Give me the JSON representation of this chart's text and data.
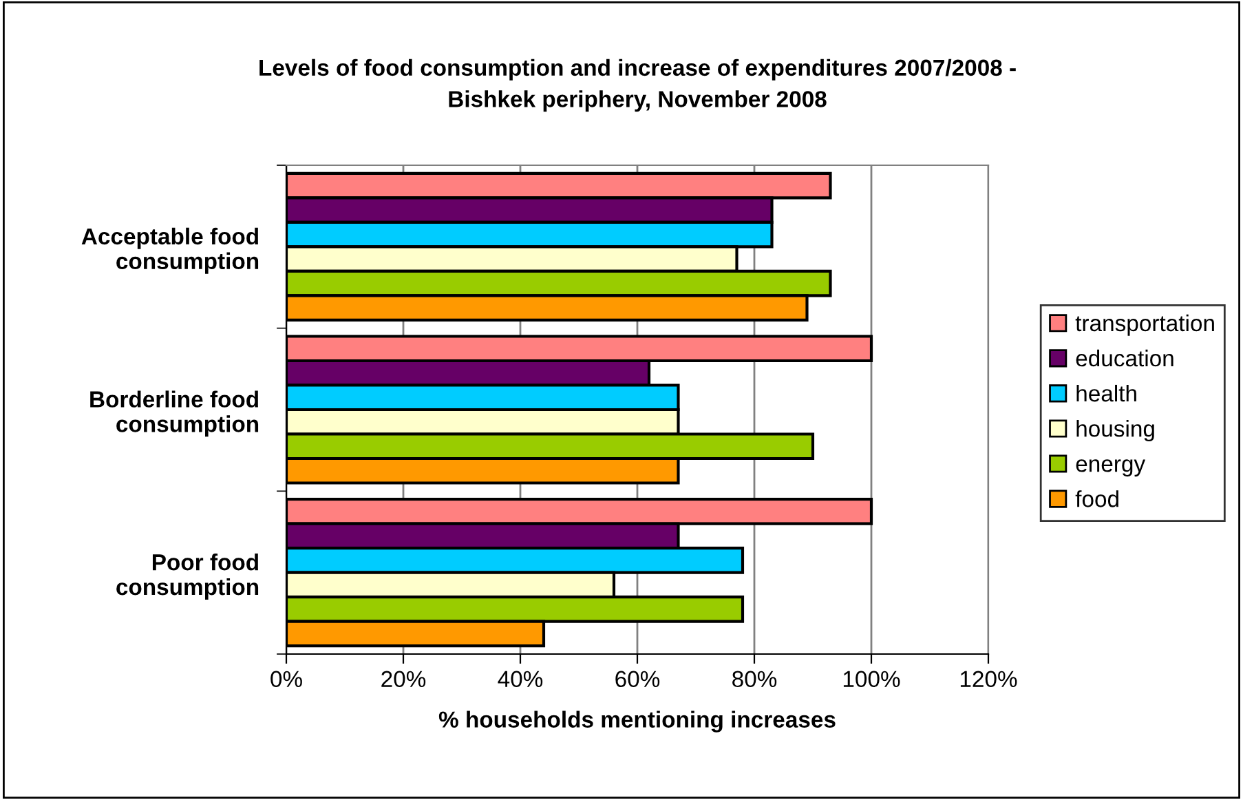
{
  "chart_data": {
    "type": "bar",
    "orientation": "horizontal",
    "title": "Levels of food consumption and increase of expenditures 2007/2008 -\nBishkek periphery, November 2008",
    "xlabel": "% households mentioning increases",
    "categories": [
      "Acceptable food\nconsumption",
      "Borderline food\nconsumption",
      "Poor food\nconsumption"
    ],
    "series": [
      {
        "name": "transportation",
        "color": "#ff8080",
        "values": [
          93,
          100,
          100
        ]
      },
      {
        "name": "education",
        "color": "#660066",
        "values": [
          83,
          62,
          67
        ]
      },
      {
        "name": "health",
        "color": "#00ccff",
        "values": [
          83,
          67,
          78
        ]
      },
      {
        "name": "housing",
        "color": "#ffffcc",
        "values": [
          77,
          67,
          56
        ]
      },
      {
        "name": "energy",
        "color": "#99cc00",
        "values": [
          93,
          90,
          78
        ]
      },
      {
        "name": "food",
        "color": "#ff9900",
        "values": [
          89,
          67,
          44
        ]
      }
    ],
    "xlim": [
      0,
      120
    ],
    "xticks": [
      {
        "value": 0,
        "label": "0%"
      },
      {
        "value": 20,
        "label": "20%"
      },
      {
        "value": 40,
        "label": "40%"
      },
      {
        "value": 60,
        "label": "60%"
      },
      {
        "value": 80,
        "label": "80%"
      },
      {
        "value": 100,
        "label": "100%"
      },
      {
        "value": 120,
        "label": "120%"
      }
    ],
    "grid": "x",
    "legend": "right"
  }
}
